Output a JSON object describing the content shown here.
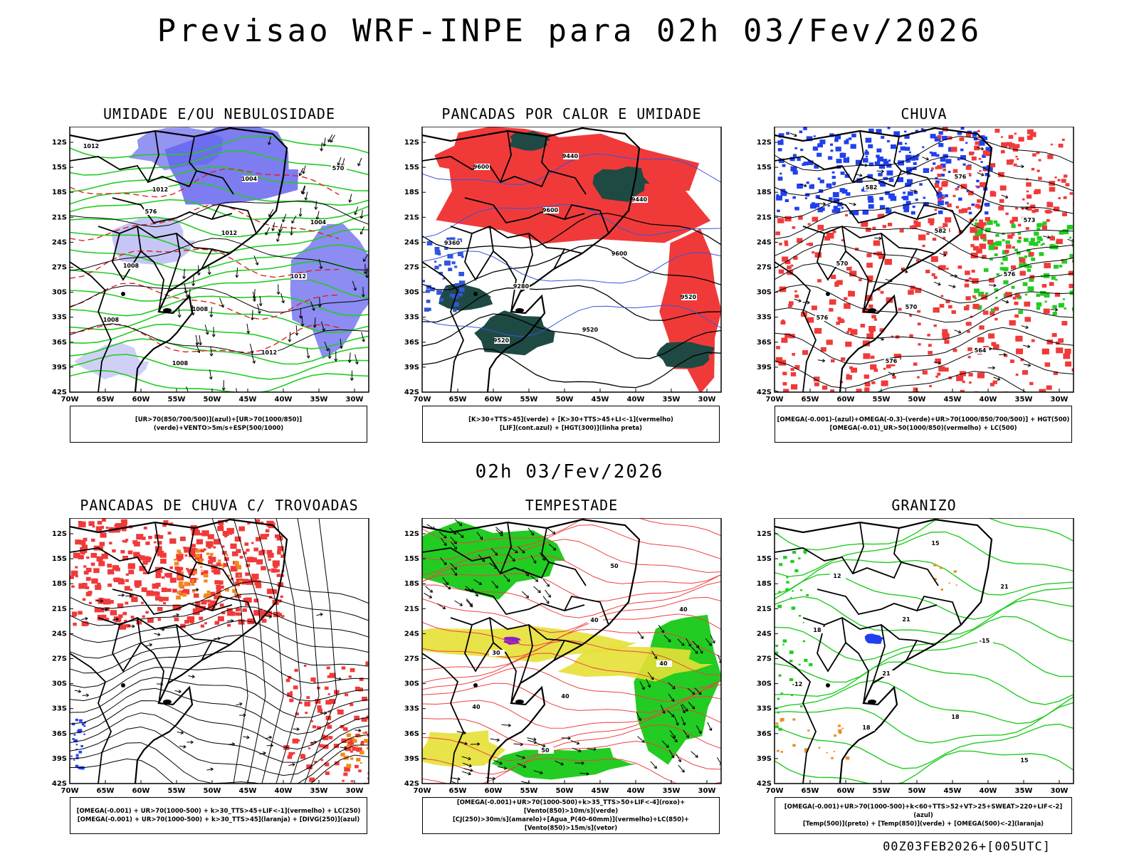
{
  "header": {
    "title": "Previsao WRF-INPE  para 02h 03/Fev/2026"
  },
  "mid_date": "02h 03/Fev/2026",
  "footer": {
    "stamp": "00Z03FEB2026+[005UTC]"
  },
  "axes": {
    "lat_labels": [
      "12S",
      "15S",
      "18S",
      "21S",
      "24S",
      "27S",
      "30S",
      "33S",
      "36S",
      "39S",
      "42S"
    ],
    "lon_labels": [
      "70W",
      "65W",
      "60W",
      "55W",
      "50W",
      "45W",
      "40W",
      "35W",
      "30W"
    ]
  },
  "panels": [
    {
      "id": "umidade",
      "title": "UMIDADE E/OU NEBULOSIDADE",
      "legend": [
        "[UR>70(850/700/500)](azul)+[UR>70(1000/850)](verde)+VENTO>5m/s+ESP(500/1000)"
      ],
      "contour_labels": [
        "1012",
        "1012",
        "1012",
        "1012",
        "1008",
        "1008",
        "1004",
        "1004",
        "1008",
        "1008",
        "1012",
        "570",
        "576"
      ]
    },
    {
      "id": "pancadas-calor",
      "title": "PANCADAS POR CALOR E UMIDADE",
      "legend": [
        "[K>30+TTS>45](verde) + [K>30+TTS>45+LI<-1](vermelho)",
        "[LIF](cont.azul) + [HGT(300)](linha preta)"
      ],
      "contour_labels": [
        "9600",
        "9600",
        "9600",
        "9520",
        "9520",
        "9440",
        "9440",
        "9360",
        "9280",
        "9520"
      ]
    },
    {
      "id": "chuva",
      "title": "CHUVA",
      "legend": [
        "[OMEGA(-0.001)-(azul)+OMEGA(-0.3)-(verde)+UR>70(1000/850/700/500)] + HGT(500)",
        "[OMEGA(-0.01)_UR>50(1000/850)(vermelho) + LC(500)"
      ],
      "contour_labels": [
        "582",
        "582",
        "576",
        "576",
        "576",
        "576",
        "573",
        "570",
        "570",
        "564"
      ]
    },
    {
      "id": "trovoadas",
      "title": "PANCADAS DE CHUVA C/ TROVOADAS",
      "legend": [
        "[OMEGA(-0.001) + UR>70(1000-500) + k>30_TTS>45+LIF<-1](vermelho) + LC(250)",
        "[OMEGA(-0.001) + UR>70(1000-500) + k>30_TTS>45](laranja) + [DIVG(250)](azul)"
      ],
      "contour_labels": []
    },
    {
      "id": "tempestade",
      "title": "TEMPESTADE",
      "legend": [
        "[OMEGA(-0.001)+UR>70(1000-500)+k>35_TTS>50+LIF<-4](roxo)+[Vento(850)>10m/s](verde)",
        "[CJ(250)>30m/s](amarelo)+[Agua_P(40-60mm)](vermelho)+LC(850)+[Vento(850)>15m/s](vetor)"
      ],
      "contour_labels": [
        "40",
        "40",
        "40",
        "50",
        "50",
        "40",
        "30",
        "40"
      ]
    },
    {
      "id": "granizo",
      "title": "GRANIZO",
      "legend": [
        "[OMEGA(-0.001)+UR>70(1000-500)+k<60+TTS>52+VT>25+SWEAT>220+LIF<-2](azul)",
        "[Temp(500)](preto) + [Temp(850)](verde) + [OMEGA(500)<-2](laranja)"
      ],
      "contour_labels": [
        "-15",
        "-12",
        "18",
        "15",
        "21",
        "18",
        "21",
        "18",
        "15",
        "12",
        "21"
      ]
    }
  ],
  "colors": {
    "blue_fill": "#6666ee",
    "green_line": "#22cc22",
    "red_fill": "#f03a3a",
    "dark_fill": "#1f4a44",
    "yellow_fill": "#e6e035",
    "orange": "#f08a1e",
    "purple": "#8a22cc"
  }
}
